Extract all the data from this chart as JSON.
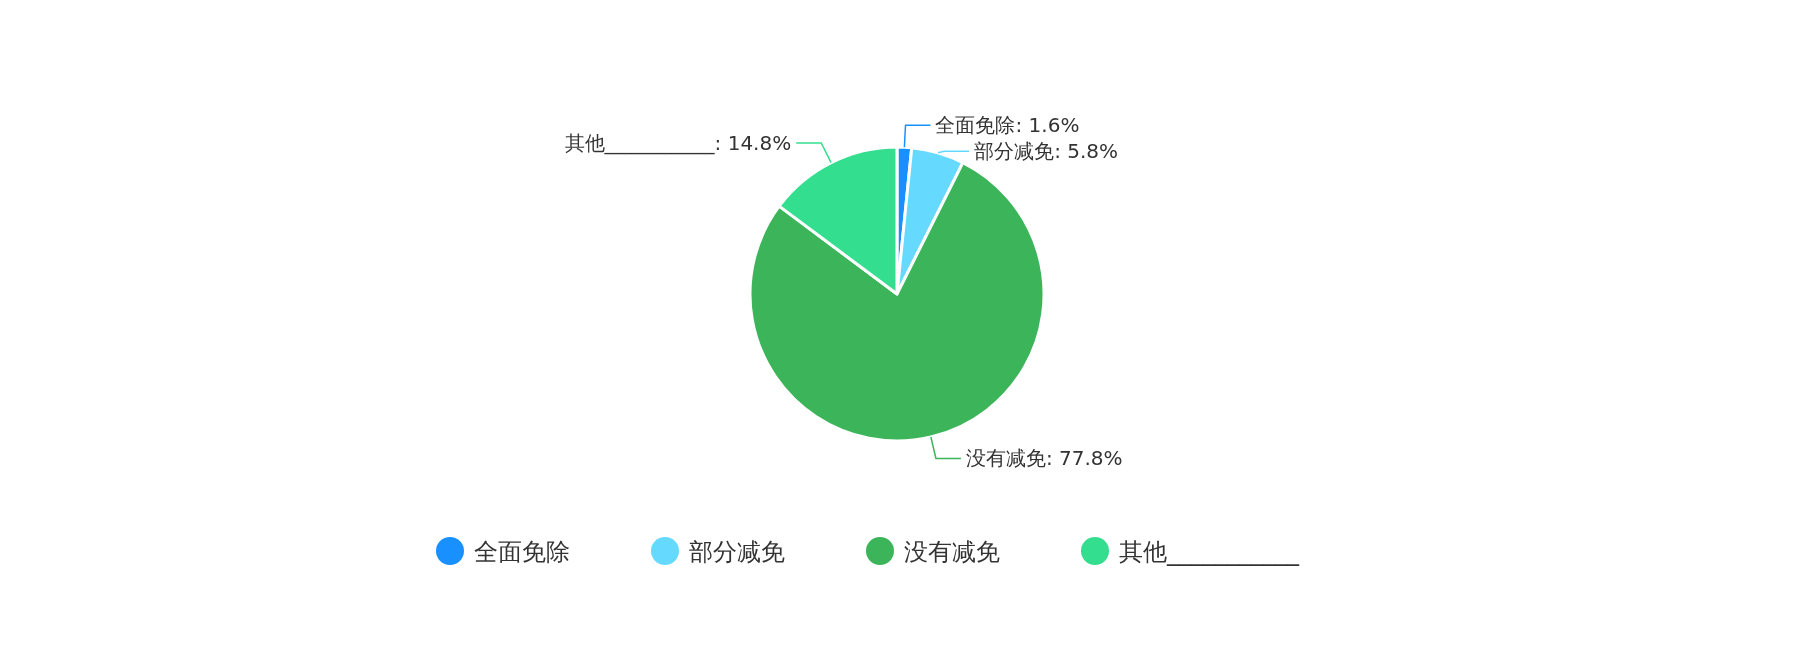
{
  "chart_data": {
    "type": "pie",
    "categories": [
      "全面免除",
      "部分减免",
      "没有减免",
      "其他___________"
    ],
    "values": [
      1.6,
      5.8,
      77.8,
      14.8
    ],
    "colors": [
      "#1890ff",
      "#66d9ff",
      "#3cb55a",
      "#34de8f"
    ],
    "value_labels": [
      "全面免除: 1.6%",
      "部分减免: 5.8%",
      "没有减免: 77.8%",
      "其他___________: 14.8%"
    ],
    "legend": "bottom"
  }
}
